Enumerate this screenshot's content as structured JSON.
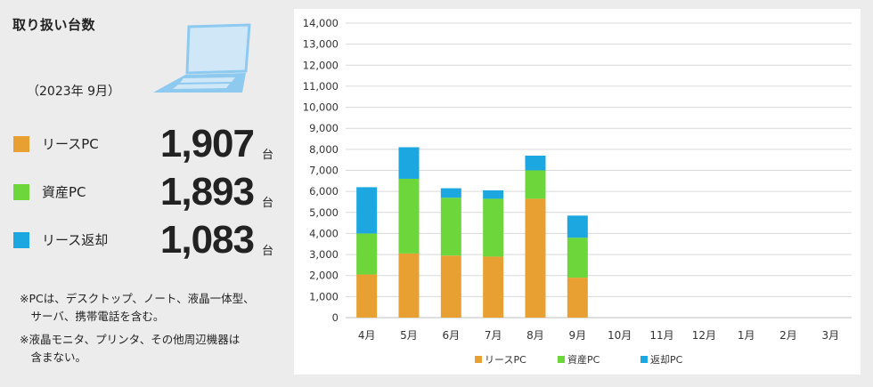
{
  "summary": {
    "title": "取り扱い台数",
    "period": "（2023年 9月）",
    "stats": [
      {
        "label": "リースPC",
        "value": "1,907",
        "unit": "台",
        "color": "#e8a033"
      },
      {
        "label": "資産PC",
        "value": "1,893",
        "unit": "台",
        "color": "#6cd63a"
      },
      {
        "label": "リース返却",
        "value": "1,083",
        "unit": "台",
        "color": "#1ca7e0"
      }
    ],
    "notes": [
      "※PCは、デスクトップ、ノート、液晶一体型、",
      "　サーバ、携帯電話を含む。",
      "※液晶モニタ、プリンタ、その他周辺機器は",
      "　含まない。"
    ],
    "laptop_icon": "laptop-icon"
  },
  "chart_data": {
    "type": "bar",
    "stacked": true,
    "categories": [
      "4月",
      "5月",
      "6月",
      "7月",
      "8月",
      "9月",
      "10月",
      "11月",
      "12月",
      "1月",
      "2月",
      "3月"
    ],
    "series": [
      {
        "name": "リースPC",
        "color": "#e8a033",
        "values": [
          2050,
          3050,
          2950,
          2900,
          5650,
          1900,
          null,
          null,
          null,
          null,
          null,
          null
        ]
      },
      {
        "name": "資産PC",
        "color": "#6cd63a",
        "values": [
          1950,
          3550,
          2750,
          2750,
          1350,
          1900,
          null,
          null,
          null,
          null,
          null,
          null
        ]
      },
      {
        "name": "返却PC",
        "color": "#1ca7e0",
        "values": [
          2200,
          1500,
          450,
          400,
          700,
          1050,
          null,
          null,
          null,
          null,
          null,
          null
        ]
      }
    ],
    "ylim": [
      0,
      14000
    ],
    "yticks": [
      "0",
      "1,000",
      "2,000",
      "3,000",
      "4,000",
      "5,000",
      "6,000",
      "7,000",
      "8,000",
      "9,000",
      "10,000",
      "11,000",
      "12,000",
      "13,000",
      "14,000"
    ],
    "grid": true,
    "legend": "bottom"
  }
}
